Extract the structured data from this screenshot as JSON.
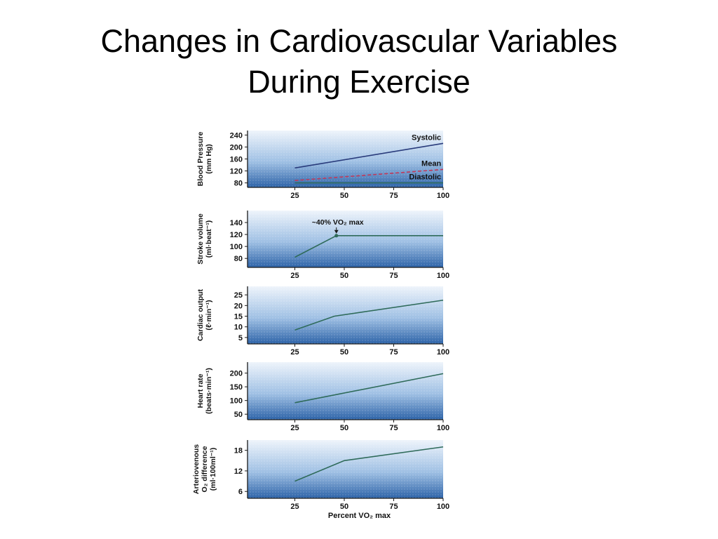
{
  "slide": {
    "title_line1": "Changes in Cardiovascular Variables",
    "title_line2": "During Exercise"
  },
  "colors": {
    "panel_top": "#eef4fb",
    "panel_bottom": "#2d63a8",
    "line": "#2f6b5a",
    "mean_line": "#c0395a",
    "systolic_line": "#2a3c7c"
  },
  "chart_data": [
    {
      "type": "line",
      "ylabel_line1": "Blood Pressure",
      "ylabel_line2": "(mm Hg)",
      "yticks": [
        "240",
        "200",
        "160",
        "120",
        "80"
      ],
      "ytick_values": [
        240,
        200,
        160,
        120,
        80
      ],
      "ylim": [
        65,
        255
      ],
      "xticks": [
        "25",
        "50",
        "75",
        "100"
      ],
      "x": [
        25,
        100
      ],
      "series": [
        {
          "name": "Systolic",
          "values": [
            130,
            212
          ]
        },
        {
          "name": "Mean",
          "values": [
            88,
            125
          ]
        },
        {
          "name": "Diastolic",
          "values": [
            80,
            80
          ]
        }
      ]
    },
    {
      "type": "line",
      "ylabel_line1": "Stroke volume",
      "ylabel_line2": "(ml·beat⁻¹)",
      "yticks": [
        "140",
        "120",
        "100",
        "80"
      ],
      "ytick_values": [
        140,
        120,
        100,
        80
      ],
      "ylim": [
        65,
        160
      ],
      "xticks": [
        "25",
        "50",
        "75",
        "100"
      ],
      "annotation": "~40% VO₂ max",
      "x": [
        25,
        46,
        100
      ],
      "series": [
        {
          "values": [
            82,
            118,
            118
          ]
        }
      ]
    },
    {
      "type": "line",
      "ylabel_line1": "Cardiac output",
      "ylabel_line2": "(ℓ·min⁻¹)",
      "yticks": [
        "25",
        "20",
        "15",
        "10",
        "5"
      ],
      "ytick_values": [
        25,
        20,
        15,
        10,
        5
      ],
      "ylim": [
        2,
        29
      ],
      "xticks": [
        "25",
        "50",
        "75",
        "100"
      ],
      "x": [
        25,
        45,
        100
      ],
      "series": [
        {
          "values": [
            8.5,
            15,
            22.5
          ]
        }
      ]
    },
    {
      "type": "line",
      "ylabel_line1": "Heart rate",
      "ylabel_line2": "(beats·min⁻¹)",
      "yticks": [
        "200",
        "150",
        "100",
        "50"
      ],
      "ytick_values": [
        200,
        150,
        100,
        50
      ],
      "ylim": [
        30,
        240
      ],
      "xticks": [
        "25",
        "50",
        "75",
        "100"
      ],
      "x": [
        25,
        100
      ],
      "series": [
        {
          "values": [
            92,
            198
          ]
        }
      ]
    },
    {
      "type": "line",
      "ylabel_line1": "Arteriovenous",
      "ylabel_line2": "O₂ difference",
      "ylabel_line3": "(ml·100ml⁻¹)",
      "yticks": [
        "18",
        "12",
        "6"
      ],
      "ytick_values": [
        18,
        12,
        6
      ],
      "ylim": [
        4,
        21
      ],
      "xticks": [
        "25",
        "50",
        "75",
        "100"
      ],
      "xlabel": "Percent VO₂ max",
      "x": [
        25,
        50,
        100
      ],
      "series": [
        {
          "values": [
            9,
            15,
            19
          ]
        }
      ]
    }
  ]
}
